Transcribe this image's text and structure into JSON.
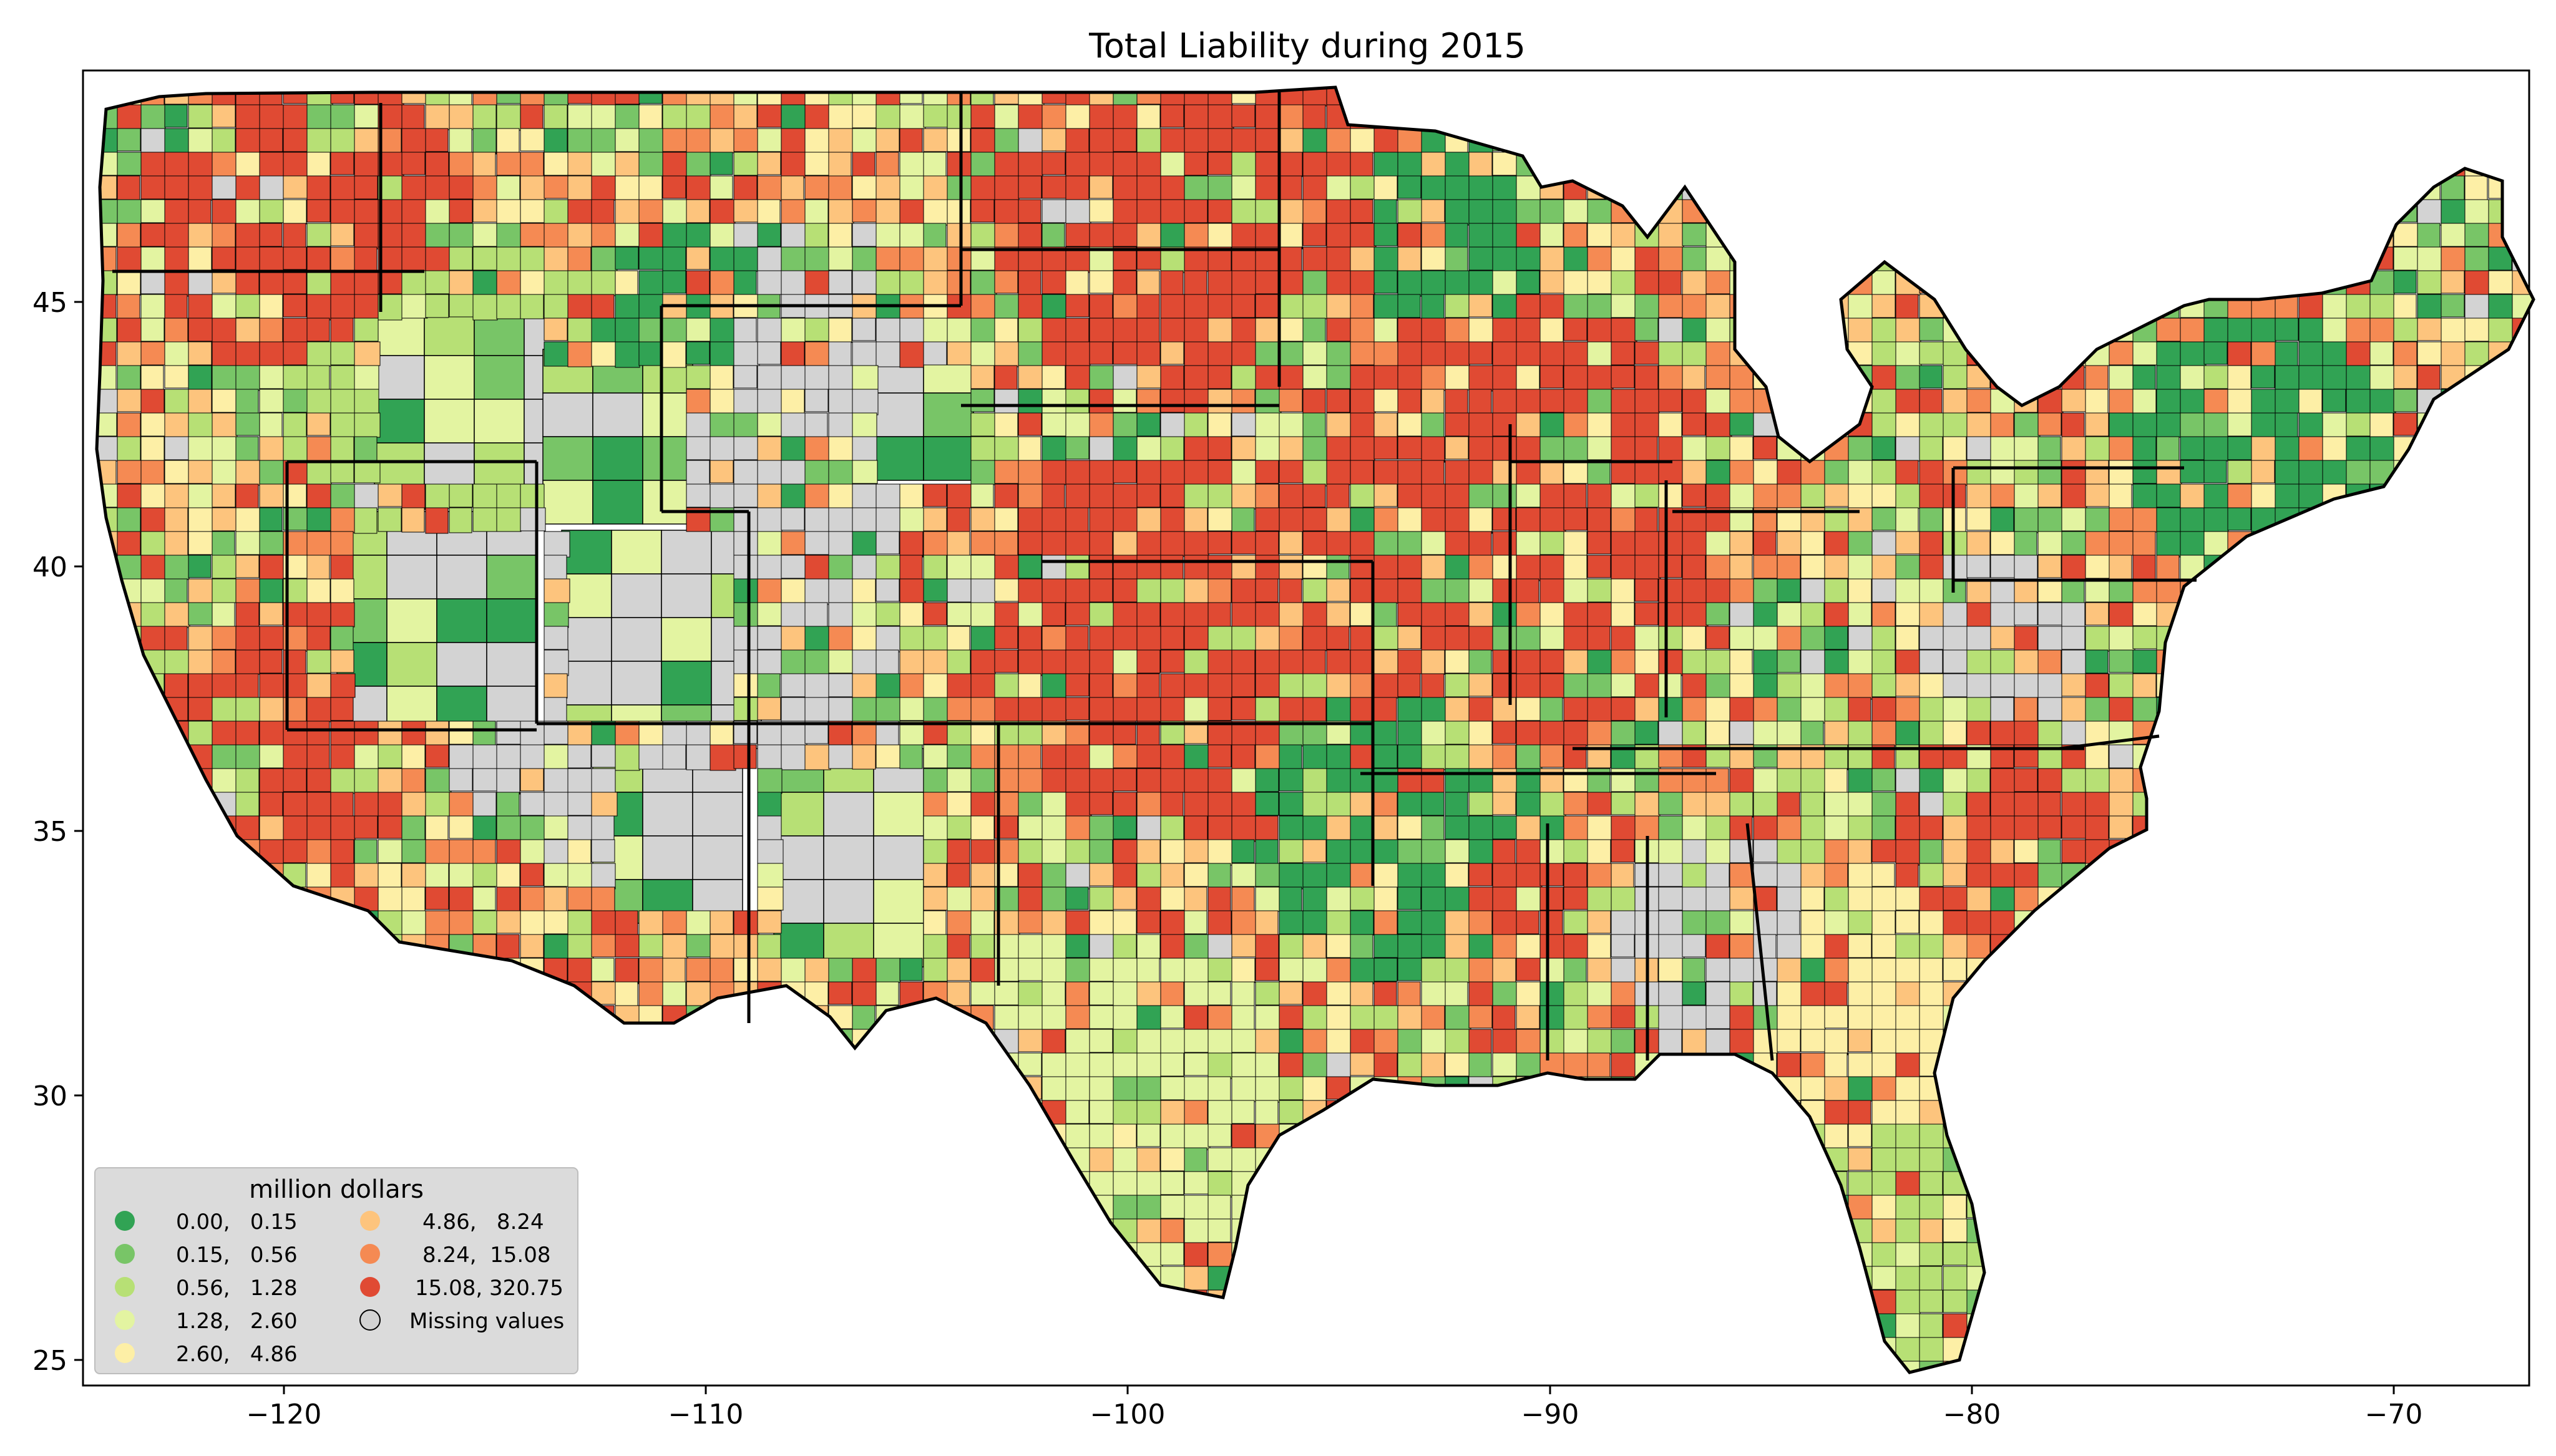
{
  "map": {
    "title": "Total Liability during 2015",
    "region": "Contiguous United States (county level)",
    "x_axis": {
      "ticks": [
        "−120",
        "−110",
        "−100",
        "−90",
        "−80",
        "−70"
      ]
    },
    "y_axis": {
      "ticks": [
        "25",
        "30",
        "35",
        "40",
        "45"
      ]
    },
    "missing_color": "#d3d3d3",
    "border_color": "#000000"
  },
  "legend": {
    "title": "million dollars",
    "items": [
      {
        "label": "0.00,   0.15",
        "color": "#31a354"
      },
      {
        "label": "0.15,   0.56",
        "color": "#78c567"
      },
      {
        "label": "0.56,   1.28",
        "color": "#b7e075"
      },
      {
        "label": "1.28,   2.60",
        "color": "#e3f4a1"
      },
      {
        "label": "2.60,   4.86",
        "color": "#fdefa6"
      },
      {
        "label": "4.86,   8.24",
        "color": "#fdc47d"
      },
      {
        "label": "8.24,  15.08",
        "color": "#f58a53"
      },
      {
        "label": "15.08, 320.75",
        "color": "#e04a33"
      },
      {
        "label": "Missing values",
        "color": "#d3d3d3"
      }
    ]
  }
}
